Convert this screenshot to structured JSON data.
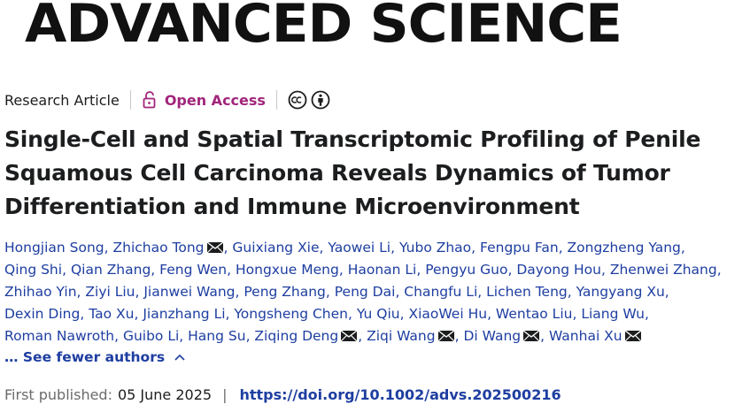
{
  "journal": {
    "name": "ADVANCED SCIENCE"
  },
  "meta": {
    "article_type": "Research Article",
    "access": "Open Access",
    "license_icons": [
      "creative-commons-icon",
      "attribution-icon"
    ]
  },
  "article": {
    "title": "Single-Cell and Spatial Transcriptomic Profiling of Penile Squamous Cell Carcinoma Reveals Dynamics of Tumor Differentiation and Immune Microenvironment"
  },
  "authors": [
    {
      "name": "Hongjian Song",
      "email": false
    },
    {
      "name": "Zhichao Tong",
      "email": true
    },
    {
      "name": "Guixiang Xie",
      "email": false
    },
    {
      "name": "Yaowei Li",
      "email": false
    },
    {
      "name": "Yubo Zhao",
      "email": false
    },
    {
      "name": "Fengpu Fan",
      "email": false
    },
    {
      "name": "Zongzheng Yang",
      "email": false
    },
    {
      "name": "Qing Shi",
      "email": false
    },
    {
      "name": "Qian Zhang",
      "email": false
    },
    {
      "name": "Feng Wen",
      "email": false
    },
    {
      "name": "Hongxue Meng",
      "email": false
    },
    {
      "name": "Haonan Li",
      "email": false
    },
    {
      "name": "Pengyu Guo",
      "email": false
    },
    {
      "name": "Dayong Hou",
      "email": false
    },
    {
      "name": "Zhenwei Zhang",
      "email": false
    },
    {
      "name": "Zhihao Yin",
      "email": false
    },
    {
      "name": "Ziyi Liu",
      "email": false
    },
    {
      "name": "Jianwei Wang",
      "email": false
    },
    {
      "name": "Peng Zhang",
      "email": false
    },
    {
      "name": "Peng Dai",
      "email": false
    },
    {
      "name": "Changfu Li",
      "email": false
    },
    {
      "name": "Lichen Teng",
      "email": false
    },
    {
      "name": "Yangyang Xu",
      "email": false
    },
    {
      "name": "Dexin Ding",
      "email": false
    },
    {
      "name": "Tao Xu",
      "email": false
    },
    {
      "name": "Jianzhang Li",
      "email": false
    },
    {
      "name": "Yongsheng Chen",
      "email": false
    },
    {
      "name": "Yu Qiu",
      "email": false
    },
    {
      "name": "XiaoWei Hu",
      "email": false
    },
    {
      "name": "Wentao Liu",
      "email": false
    },
    {
      "name": "Liang Wu",
      "email": false
    },
    {
      "name": "Roman Nawroth",
      "email": false
    },
    {
      "name": "Guibo Li",
      "email": false
    },
    {
      "name": "Hang Su",
      "email": false
    },
    {
      "name": "Ziqing Deng",
      "email": true
    },
    {
      "name": "Ziqi Wang",
      "email": true
    },
    {
      "name": "Di Wang",
      "email": true
    },
    {
      "name": "Wanhai Xu",
      "email": true
    }
  ],
  "toggle": {
    "label": "… See fewer authors"
  },
  "publication": {
    "label": "First published:",
    "date": "05 June 2025",
    "separator": "|",
    "doi": "https://doi.org/10.1002/advs.202500216"
  },
  "colors": {
    "link": "#1e3ea1",
    "open_access": "#a1257a",
    "text": "#1c1d1e"
  }
}
